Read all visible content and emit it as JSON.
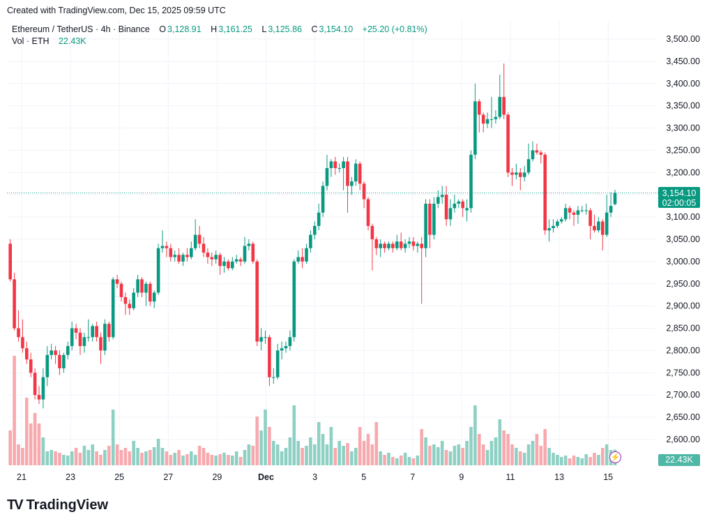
{
  "header": {
    "created": "Created with TradingView.com, Dec 15, 2025 09:59 UTC"
  },
  "legend": {
    "symbol": "Ethereum / TetherUS · 4h · Binance",
    "o_label": "O",
    "o": "3,128.91",
    "h_label": "H",
    "h": "3,161.25",
    "l_label": "L",
    "l": "3,125.86",
    "c_label": "C",
    "c": "3,154.10",
    "change": "+25.20 (+0.81%)",
    "vol_label": "Vol · ETH",
    "vol": "22.43K"
  },
  "last_price": {
    "price": "3,154.10",
    "countdown": "02:00:05"
  },
  "volume_badge": "22.43K",
  "indicator_icon": "lightning-icon",
  "brand": {
    "name": "TradingView",
    "logo": "TV"
  },
  "colors": {
    "up": "#089981",
    "down": "#F23645",
    "up_vol": "#8fd0c4",
    "down_vol": "#f7a9ae",
    "grid": "#f0f3fa",
    "indicator": "#9c27b0"
  },
  "chart_data": {
    "type": "candlestick",
    "symbol": "ETH/USDT",
    "interval": "4h",
    "ylim": [
      2550,
      3520
    ],
    "y_ticks": [
      "3,500.00",
      "3,450.00",
      "3,400.00",
      "3,350.00",
      "3,300.00",
      "3,250.00",
      "3,200.00",
      "3,150.00",
      "3,100.00",
      "3,050.00",
      "3,000.00",
      "2,950.00",
      "2,900.00",
      "2,850.00",
      "2,800.00",
      "2,750.00",
      "2,700.00",
      "2,650.00",
      "2,600.00"
    ],
    "y_tick_values": [
      3500,
      3450,
      3400,
      3350,
      3300,
      3250,
      3200,
      3150,
      3100,
      3050,
      3000,
      2950,
      2900,
      2850,
      2800,
      2750,
      2700,
      2650,
      2600
    ],
    "x_ticks": [
      "21",
      "23",
      "25",
      "27",
      "29",
      "Dec",
      "3",
      "5",
      "7",
      "9",
      "11",
      "13",
      "15"
    ],
    "grid": true,
    "last_close": 3154.1,
    "candles_ohlc": [
      [
        3040,
        3050,
        2955,
        2960
      ],
      [
        2960,
        2975,
        2845,
        2850
      ],
      [
        2850,
        2890,
        2820,
        2830
      ],
      [
        2830,
        2870,
        2795,
        2805
      ],
      [
        2805,
        2820,
        2770,
        2780
      ],
      [
        2780,
        2795,
        2740,
        2750
      ],
      [
        2750,
        2760,
        2690,
        2700
      ],
      [
        2700,
        2720,
        2680,
        2690
      ],
      [
        2690,
        2760,
        2670,
        2740
      ],
      [
        2740,
        2810,
        2720,
        2790
      ],
      [
        2790,
        2815,
        2780,
        2800
      ],
      [
        2800,
        2810,
        2770,
        2790
      ],
      [
        2790,
        2800,
        2745,
        2760
      ],
      [
        2760,
        2795,
        2750,
        2790
      ],
      [
        2790,
        2820,
        2780,
        2810
      ],
      [
        2810,
        2865,
        2800,
        2850
      ],
      [
        2850,
        2860,
        2825,
        2840
      ],
      [
        2840,
        2850,
        2790,
        2810
      ],
      [
        2810,
        2840,
        2795,
        2830
      ],
      [
        2830,
        2870,
        2820,
        2830
      ],
      [
        2830,
        2860,
        2820,
        2855
      ],
      [
        2855,
        2865,
        2820,
        2830
      ],
      [
        2830,
        2840,
        2770,
        2800
      ],
      [
        2800,
        2870,
        2790,
        2860
      ],
      [
        2860,
        2865,
        2820,
        2830
      ],
      [
        2830,
        2965,
        2825,
        2960
      ],
      [
        2960,
        2970,
        2940,
        2950
      ],
      [
        2950,
        2955,
        2910,
        2920
      ],
      [
        2920,
        2930,
        2880,
        2905
      ],
      [
        2905,
        2915,
        2880,
        2895
      ],
      [
        2895,
        2940,
        2890,
        2930
      ],
      [
        2930,
        2970,
        2920,
        2960
      ],
      [
        2960,
        2965,
        2920,
        2930
      ],
      [
        2930,
        2955,
        2900,
        2950
      ],
      [
        2950,
        2955,
        2900,
        2910
      ],
      [
        2910,
        2935,
        2895,
        2930
      ],
      [
        2930,
        3040,
        2925,
        3030
      ],
      [
        3030,
        3070,
        3020,
        3035
      ],
      [
        3035,
        3045,
        3010,
        3030
      ],
      [
        3030,
        3040,
        3000,
        3010
      ],
      [
        3010,
        3025,
        3000,
        3015
      ],
      [
        3015,
        3030,
        2995,
        3000
      ],
      [
        3000,
        3020,
        2990,
        3015
      ],
      [
        3015,
        3030,
        3000,
        3010
      ],
      [
        3010,
        3045,
        3005,
        3030
      ],
      [
        3030,
        3095,
        3025,
        3060
      ],
      [
        3060,
        3080,
        3030,
        3040
      ],
      [
        3040,
        3055,
        3010,
        3020
      ],
      [
        3020,
        3030,
        2995,
        3010
      ],
      [
        3010,
        3020,
        2990,
        3005
      ],
      [
        3005,
        3025,
        2995,
        3015
      ],
      [
        3015,
        3020,
        2970,
        2990
      ],
      [
        2990,
        3010,
        2975,
        3000
      ],
      [
        3000,
        3005,
        2980,
        2985
      ],
      [
        2985,
        3010,
        2980,
        3000
      ],
      [
        3000,
        3015,
        2995,
        3005
      ],
      [
        3005,
        3010,
        2990,
        3000
      ],
      [
        3000,
        3055,
        2995,
        3035
      ],
      [
        3035,
        3050,
        3025,
        3040
      ],
      [
        3040,
        3045,
        2995,
        3000
      ],
      [
        3000,
        3005,
        2810,
        2820
      ],
      [
        2820,
        2850,
        2800,
        2830
      ],
      [
        2830,
        2845,
        2815,
        2830
      ],
      [
        2830,
        2835,
        2720,
        2740
      ],
      [
        2740,
        2760,
        2725,
        2740
      ],
      [
        2740,
        2815,
        2735,
        2800
      ],
      [
        2800,
        2820,
        2780,
        2805
      ],
      [
        2805,
        2820,
        2795,
        2810
      ],
      [
        2810,
        2845,
        2800,
        2830
      ],
      [
        2830,
        3005,
        2820,
        3000
      ],
      [
        3000,
        3025,
        2995,
        3010
      ],
      [
        3010,
        3030,
        2985,
        3000
      ],
      [
        3000,
        3040,
        2995,
        3030
      ],
      [
        3030,
        3070,
        3020,
        3060
      ],
      [
        3060,
        3090,
        3050,
        3080
      ],
      [
        3080,
        3130,
        3070,
        3110
      ],
      [
        3110,
        3180,
        3100,
        3170
      ],
      [
        3170,
        3240,
        3160,
        3210
      ],
      [
        3210,
        3230,
        3190,
        3225
      ],
      [
        3225,
        3235,
        3195,
        3210
      ],
      [
        3210,
        3220,
        3200,
        3210
      ],
      [
        3210,
        3235,
        3160,
        3225
      ],
      [
        3225,
        3235,
        3110,
        3170
      ],
      [
        3170,
        3190,
        3150,
        3180
      ],
      [
        3180,
        3230,
        3170,
        3220
      ],
      [
        3220,
        3225,
        3160,
        3175
      ],
      [
        3175,
        3180,
        3120,
        3140
      ],
      [
        3140,
        3145,
        3070,
        3080
      ],
      [
        3080,
        3085,
        2980,
        3050
      ],
      [
        3050,
        3055,
        3015,
        3030
      ],
      [
        3030,
        3050,
        3010,
        3040
      ],
      [
        3040,
        3045,
        3020,
        3030
      ],
      [
        3030,
        3045,
        3025,
        3040
      ],
      [
        3040,
        3045,
        3020,
        3030
      ],
      [
        3030,
        3060,
        3025,
        3045
      ],
      [
        3045,
        3065,
        3025,
        3030
      ],
      [
        3030,
        3050,
        3020,
        3040
      ],
      [
        3040,
        3055,
        3030,
        3045
      ],
      [
        3045,
        3055,
        3025,
        3035
      ],
      [
        3035,
        3045,
        3020,
        3040
      ],
      [
        3040,
        3055,
        2905,
        3030
      ],
      [
        3030,
        3140,
        3010,
        3130
      ],
      [
        3130,
        3140,
        3030,
        3060
      ],
      [
        3060,
        3145,
        3050,
        3130
      ],
      [
        3130,
        3160,
        3120,
        3145
      ],
      [
        3145,
        3170,
        3130,
        3150
      ],
      [
        3150,
        3170,
        3080,
        3095
      ],
      [
        3095,
        3140,
        3080,
        3120
      ],
      [
        3120,
        3150,
        3110,
        3130
      ],
      [
        3130,
        3140,
        3120,
        3135
      ],
      [
        3135,
        3140,
        3100,
        3120
      ],
      [
        3115,
        3140,
        3090,
        3120
      ],
      [
        3120,
        3250,
        3110,
        3240
      ],
      [
        3240,
        3400,
        3230,
        3360
      ],
      [
        3360,
        3365,
        3290,
        3330
      ],
      [
        3330,
        3335,
        3290,
        3310
      ],
      [
        3310,
        3335,
        3300,
        3320
      ],
      [
        3320,
        3370,
        3300,
        3320
      ],
      [
        3320,
        3340,
        3310,
        3325
      ],
      [
        3325,
        3420,
        3320,
        3370
      ],
      [
        3370,
        3445,
        3320,
        3330
      ],
      [
        3330,
        3335,
        3190,
        3200
      ],
      [
        3200,
        3210,
        3170,
        3195
      ],
      [
        3195,
        3220,
        3185,
        3200
      ],
      [
        3200,
        3210,
        3160,
        3190
      ],
      [
        3190,
        3215,
        3180,
        3200
      ],
      [
        3200,
        3265,
        3195,
        3230
      ],
      [
        3230,
        3270,
        3225,
        3250
      ],
      [
        3250,
        3265,
        3240,
        3245
      ],
      [
        3245,
        3250,
        3220,
        3240
      ],
      [
        3240,
        3245,
        3060,
        3070
      ],
      [
        3070,
        3095,
        3045,
        3075
      ],
      [
        3075,
        3095,
        3065,
        3080
      ],
      [
        3080,
        3095,
        3075,
        3090
      ],
      [
        3090,
        3100,
        3085,
        3095
      ],
      [
        3095,
        3130,
        3090,
        3120
      ],
      [
        3120,
        3125,
        3095,
        3110
      ],
      [
        3110,
        3115,
        3080,
        3105
      ],
      [
        3105,
        3125,
        3085,
        3115
      ],
      [
        3115,
        3125,
        3110,
        3115
      ],
      [
        3115,
        3130,
        3105,
        3115
      ],
      [
        3115,
        3120,
        3050,
        3080
      ],
      [
        3080,
        3105,
        3065,
        3070
      ],
      [
        3070,
        3100,
        3065,
        3090
      ],
      [
        3090,
        3095,
        3025,
        3060
      ],
      [
        3060,
        3150,
        3055,
        3110
      ],
      [
        3110,
        3155,
        3100,
        3125
      ],
      [
        3128.91,
        3161.25,
        3125.86,
        3154.1
      ]
    ],
    "volume_k": [
      50,
      157,
      30,
      25,
      97,
      60,
      75,
      60,
      40,
      20,
      22,
      20,
      18,
      15,
      14,
      20,
      25,
      18,
      28,
      22,
      30,
      20,
      15,
      22,
      28,
      80,
      30,
      22,
      25,
      20,
      35,
      25,
      18,
      20,
      22,
      26,
      38,
      25,
      20,
      15,
      18,
      22,
      14,
      16,
      20,
      15,
      28,
      25,
      18,
      15,
      14,
      16,
      18,
      15,
      14,
      20,
      12,
      22,
      30,
      28,
      70,
      50,
      80,
      55,
      35,
      30,
      20,
      25,
      40,
      86,
      35,
      25,
      28,
      40,
      30,
      62,
      45,
      30,
      55,
      25,
      35,
      28,
      32,
      20,
      25,
      55,
      35,
      45,
      30,
      62,
      20,
      15,
      18,
      12,
      10,
      14,
      18,
      12,
      10,
      14,
      52,
      40,
      28,
      30,
      26,
      35,
      22,
      20,
      28,
      30,
      25,
      35,
      55,
      86,
      45,
      30,
      22,
      35,
      40,
      66,
      50,
      45,
      30,
      25,
      20,
      18,
      30,
      35,
      45,
      28,
      52,
      25,
      18,
      15,
      12,
      14,
      10,
      14,
      12,
      10,
      16,
      12,
      18,
      15,
      25,
      30,
      22,
      22.43
    ]
  }
}
